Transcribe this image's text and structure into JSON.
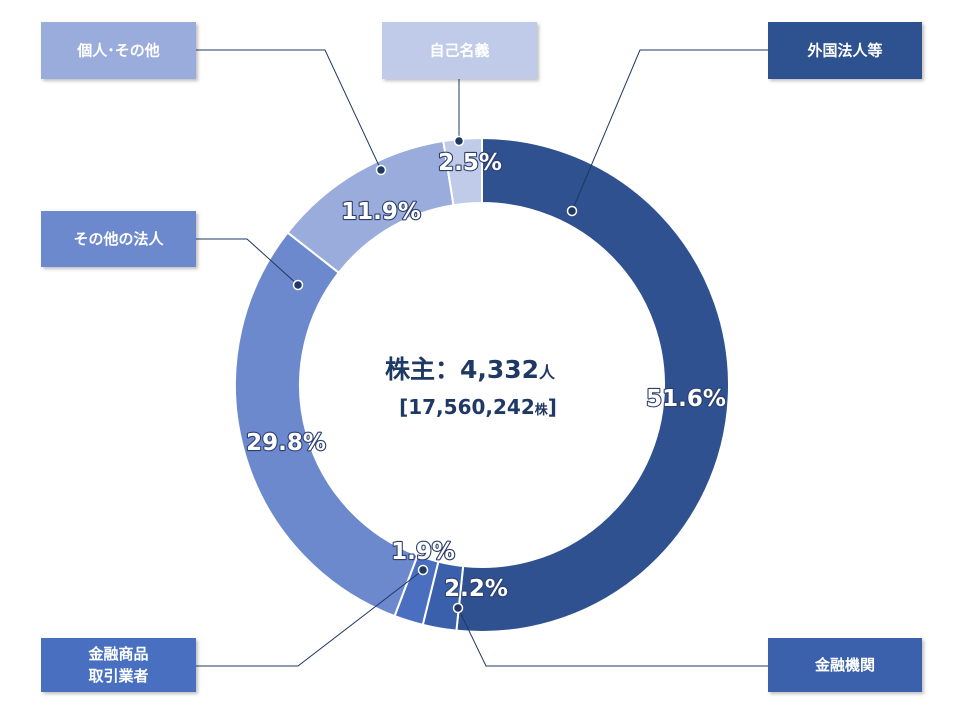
{
  "chart_data": {
    "type": "pie",
    "donut": true,
    "categories": [
      "外国法人等",
      "金融機関",
      "金融商品取引業者",
      "その他の法人",
      "個人･その他",
      "自己名義"
    ],
    "category_lines": [
      [
        "外国法人等"
      ],
      [
        "金融機関"
      ],
      [
        "金融商品",
        "取引業者"
      ],
      [
        "その他の法人"
      ],
      [
        "個人･その他"
      ],
      [
        "自己名義"
      ]
    ],
    "values": [
      51.6,
      2.2,
      1.9,
      29.8,
      11.9,
      2.5
    ],
    "value_labels": [
      "51.6%",
      "2.2%",
      "1.9%",
      "29.8%",
      "11.9%",
      "2.5%"
    ],
    "colors": [
      "#2f5190",
      "#3a60ac",
      "#4a6fc0",
      "#6d89cd",
      "#9aacdc",
      "#bfcbe8"
    ],
    "center": {
      "line1": "株主：4,332",
      "line1_unit": "人",
      "line2_open": "[17,560,242",
      "line2_unit": "株",
      "line2_close": "]"
    }
  }
}
